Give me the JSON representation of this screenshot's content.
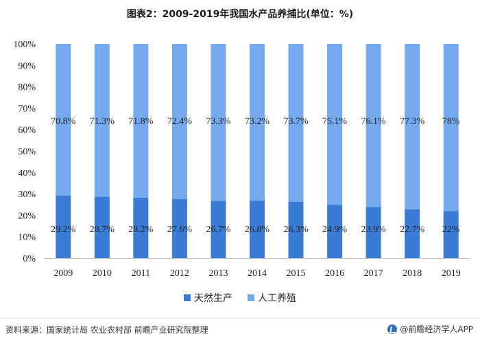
{
  "title": "图表2：2009-2019年我国水产品养捕比(单位：%)",
  "legend": {
    "natural": "天然生产",
    "farmed": "人工养殖"
  },
  "source": "资料来源：国家统计局 农业农村部 前瞻产业研究院整理",
  "brand": "@前瞻经济学人APP",
  "colors": {
    "natural": "#3a7bd5",
    "farmed": "#74a9ee",
    "text": "#222222"
  },
  "chart_data": {
    "type": "bar",
    "stacked": true,
    "categories": [
      "2009",
      "2010",
      "2011",
      "2012",
      "2013",
      "2014",
      "2015",
      "2016",
      "2017",
      "2018",
      "2019"
    ],
    "series": [
      {
        "name": "天然生产",
        "values": [
          29.2,
          28.7,
          28.2,
          27.6,
          26.7,
          26.8,
          26.3,
          24.9,
          23.9,
          22.7,
          22
        ],
        "labels": [
          "29.2%",
          "28.7%",
          "28.2%",
          "27.6%",
          "26.7%",
          "26.8%",
          "26.3%",
          "24.9%",
          "23.9%",
          "22.7%",
          "22%"
        ]
      },
      {
        "name": "人工养殖",
        "values": [
          70.8,
          71.3,
          71.8,
          72.4,
          73.3,
          73.2,
          73.7,
          75.1,
          76.1,
          77.3,
          78
        ],
        "labels": [
          "70.8%",
          "71.3%",
          "71.8%",
          "72.4%",
          "73.3%",
          "73.2%",
          "73.7%",
          "75.1%",
          "76.1%",
          "77.3%",
          "78%"
        ]
      }
    ],
    "ylim": [
      0,
      100
    ],
    "yticks": [
      "0%",
      "10%",
      "20%",
      "30%",
      "40%",
      "50%",
      "60%",
      "70%",
      "80%",
      "90%",
      "100%"
    ],
    "grid": false,
    "legend_position": "bottom"
  }
}
